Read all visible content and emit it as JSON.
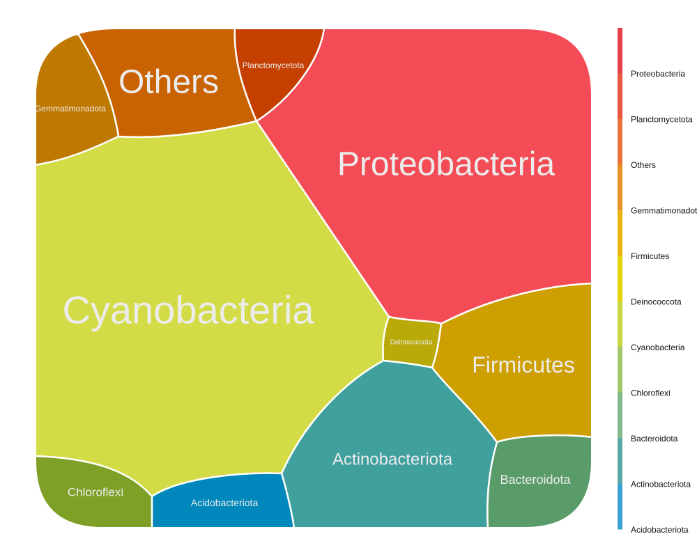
{
  "chart_data": {
    "type": "voronoi-treemap",
    "title": "",
    "cells": [
      {
        "name": "Proteobacteria",
        "color": "#F44C56"
      },
      {
        "name": "Cyanobacteria",
        "color": "#D3DC46"
      },
      {
        "name": "Others",
        "color": "#C96200"
      },
      {
        "name": "Gemmatimonadota",
        "color": "#BF7800"
      },
      {
        "name": "Planctomycetota",
        "color": "#C53F00"
      },
      {
        "name": "Firmicutes",
        "color": "#CE9F00"
      },
      {
        "name": "Deinococcota",
        "color": "#B9AA0A"
      },
      {
        "name": "Actinobacteriota",
        "color": "#3FA09E"
      },
      {
        "name": "Bacteroidota",
        "color": "#5A9C69"
      },
      {
        "name": "Acidobacteriota",
        "color": "#0087BB"
      },
      {
        "name": "Chloroflexi",
        "color": "#7EA026"
      }
    ],
    "legend": {
      "position": "right",
      "entries": [
        "Proteobacteria",
        "Planctomycetota",
        "Others",
        "Gemmatimonadota",
        "Firmicutes",
        "Deinococcota",
        "Cyanobacteria",
        "Chloroflexi",
        "Bacteroidota",
        "Actinobacteriota",
        "Acidobacteriota"
      ],
      "gradient_colors": [
        "#E8404B",
        "#E9573F",
        "#E97338",
        "#E79228",
        "#E8B414",
        "#E5D40A",
        "#C9D743",
        "#A4C66E",
        "#7FB98C",
        "#5AA9A8",
        "#3BA3D3"
      ]
    }
  }
}
